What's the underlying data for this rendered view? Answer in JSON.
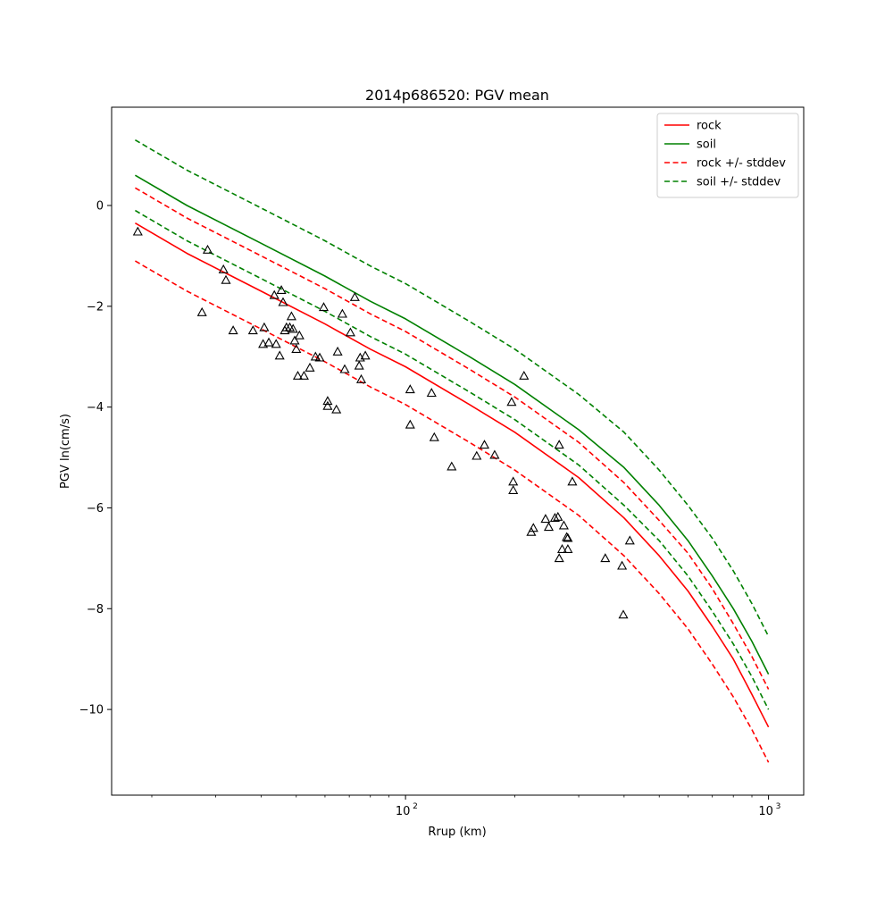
{
  "chart_data": {
    "type": "scatter",
    "title": "2014p686520: PGV mean",
    "xlabel": "Rrup (km)",
    "ylabel": "PGV ln(cm/s)",
    "xscale": "log",
    "xlim": [
      15.5,
      1250
    ],
    "ylim": [
      -11.7,
      1.95
    ],
    "x_ticks": [
      {
        "value": 100,
        "label": "10",
        "exp": "2"
      },
      {
        "value": 1000,
        "label": "10",
        "exp": "3"
      }
    ],
    "y_ticks": [
      {
        "value": 0,
        "label": "0"
      },
      {
        "value": -2,
        "label": "−2"
      },
      {
        "value": -4,
        "label": "−4"
      },
      {
        "value": -6,
        "label": "−6"
      },
      {
        "value": -8,
        "label": "−8"
      },
      {
        "value": -10,
        "label": "−10"
      }
    ],
    "grid": false,
    "legend_position": "top-right",
    "series": [
      {
        "name": "rock",
        "color": "#ff0000",
        "dash": "solid",
        "x": [
          18.0,
          25,
          40,
          60,
          80,
          100,
          150,
          200,
          300,
          400,
          500,
          600,
          700,
          800,
          900,
          1000
        ],
        "y": [
          -0.35,
          -0.95,
          -1.7,
          -2.35,
          -2.85,
          -3.2,
          -3.95,
          -4.5,
          -5.4,
          -6.2,
          -6.95,
          -7.65,
          -8.35,
          -9.0,
          -9.7,
          -10.35
        ]
      },
      {
        "name": "soil",
        "color": "#008000",
        "dash": "solid",
        "x": [
          18.0,
          25,
          40,
          60,
          80,
          100,
          150,
          200,
          300,
          400,
          500,
          600,
          700,
          800,
          900,
          1000
        ],
        "y": [
          0.6,
          0.0,
          -0.75,
          -1.4,
          -1.9,
          -2.25,
          -3.0,
          -3.55,
          -4.45,
          -5.2,
          -5.95,
          -6.65,
          -7.35,
          -8.0,
          -8.65,
          -9.3
        ]
      },
      {
        "name": "rock +/- stddev",
        "color": "#ff0000",
        "dash": "dashed",
        "x": [
          18.0,
          25,
          40,
          60,
          80,
          100,
          150,
          200,
          300,
          400,
          500,
          600,
          700,
          800,
          900,
          1000
        ],
        "y": [
          0.35,
          -0.25,
          -1.0,
          -1.65,
          -2.15,
          -2.5,
          -3.25,
          -3.8,
          -4.7,
          -5.5,
          -6.25,
          -6.9,
          -7.6,
          -8.3,
          -8.95,
          -9.6
        ]
      },
      {
        "name": "",
        "color": "#ff0000",
        "dash": "dashed",
        "x": [
          18.0,
          25,
          40,
          60,
          80,
          100,
          150,
          200,
          300,
          400,
          500,
          600,
          700,
          800,
          900,
          1000
        ],
        "y": [
          -1.1,
          -1.7,
          -2.45,
          -3.1,
          -3.6,
          -3.95,
          -4.7,
          -5.25,
          -6.15,
          -6.95,
          -7.7,
          -8.4,
          -9.1,
          -9.75,
          -10.4,
          -11.05
        ]
      },
      {
        "name": "soil +/- stddev",
        "color": "#008000",
        "dash": "dashed",
        "x": [
          18.0,
          25,
          40,
          60,
          80,
          100,
          150,
          200,
          300,
          400,
          500,
          600,
          700,
          800,
          900,
          1000
        ],
        "y": [
          1.3,
          0.7,
          -0.05,
          -0.7,
          -1.2,
          -1.55,
          -2.3,
          -2.85,
          -3.75,
          -4.5,
          -5.25,
          -5.95,
          -6.6,
          -7.25,
          -7.9,
          -8.55
        ]
      },
      {
        "name": "",
        "color": "#008000",
        "dash": "dashed",
        "x": [
          18.0,
          25,
          40,
          60,
          80,
          100,
          150,
          200,
          300,
          400,
          500,
          600,
          700,
          800,
          900,
          1000
        ],
        "y": [
          -0.1,
          -0.7,
          -1.45,
          -2.1,
          -2.6,
          -2.95,
          -3.7,
          -4.25,
          -5.15,
          -5.95,
          -6.65,
          -7.35,
          -8.05,
          -8.7,
          -9.35,
          -10.0
        ]
      }
    ],
    "observations": {
      "marker": "open-triangle",
      "color": "#000000",
      "points": [
        [
          18.3,
          -0.52
        ],
        [
          28.5,
          -0.88
        ],
        [
          27.5,
          -2.12
        ],
        [
          31.5,
          -1.27
        ],
        [
          32.0,
          -1.48
        ],
        [
          33.5,
          -2.48
        ],
        [
          38.0,
          -2.48
        ],
        [
          40.5,
          -2.75
        ],
        [
          40.8,
          -2.42
        ],
        [
          42.0,
          -2.72
        ],
        [
          43.5,
          -1.78
        ],
        [
          44.0,
          -2.75
        ],
        [
          45.0,
          -2.98
        ],
        [
          45.5,
          -1.68
        ],
        [
          46.0,
          -1.92
        ],
        [
          46.5,
          -2.48
        ],
        [
          47.0,
          -2.42
        ],
        [
          48.0,
          -2.42
        ],
        [
          48.5,
          -2.2
        ],
        [
          49.0,
          -2.45
        ],
        [
          49.5,
          -2.68
        ],
        [
          50.0,
          -2.85
        ],
        [
          50.5,
          -3.38
        ],
        [
          51.0,
          -2.58
        ],
        [
          52.5,
          -3.38
        ],
        [
          54.5,
          -3.22
        ],
        [
          56.5,
          -3.0
        ],
        [
          58.0,
          -3.02
        ],
        [
          59.5,
          -2.02
        ],
        [
          61.0,
          -3.88
        ],
        [
          61.0,
          -3.98
        ],
        [
          64.5,
          -4.05
        ],
        [
          65.0,
          -2.9
        ],
        [
          67.0,
          -2.15
        ],
        [
          68.0,
          -3.25
        ],
        [
          70.5,
          -2.52
        ],
        [
          72.5,
          -1.82
        ],
        [
          74.5,
          -3.18
        ],
        [
          75.0,
          -3.02
        ],
        [
          75.5,
          -3.45
        ],
        [
          77.5,
          -2.98
        ],
        [
          103.0,
          -3.65
        ],
        [
          103.0,
          -4.35
        ],
        [
          118.0,
          -3.72
        ],
        [
          120.0,
          -4.6
        ],
        [
          134.0,
          -5.18
        ],
        [
          157.0,
          -4.97
        ],
        [
          165.0,
          -4.75
        ],
        [
          176.0,
          -4.95
        ],
        [
          196.0,
          -3.9
        ],
        [
          198.0,
          -5.48
        ],
        [
          198.0,
          -5.65
        ],
        [
          212.0,
          -3.38
        ],
        [
          222.0,
          -6.48
        ],
        [
          225.0,
          -6.4
        ],
        [
          243.0,
          -6.22
        ],
        [
          248.0,
          -6.38
        ],
        [
          258.0,
          -6.2
        ],
        [
          263.0,
          -6.18
        ],
        [
          265.0,
          -7.0
        ],
        [
          265.0,
          -4.75
        ],
        [
          270.0,
          -6.82
        ],
        [
          273.0,
          -6.35
        ],
        [
          278.0,
          -6.58
        ],
        [
          280.0,
          -6.6
        ],
        [
          280.0,
          -6.82
        ],
        [
          288.0,
          -5.48
        ],
        [
          355.0,
          -7.0
        ],
        [
          395.0,
          -7.15
        ],
        [
          398.0,
          -8.12
        ],
        [
          415.0,
          -6.65
        ]
      ]
    }
  }
}
